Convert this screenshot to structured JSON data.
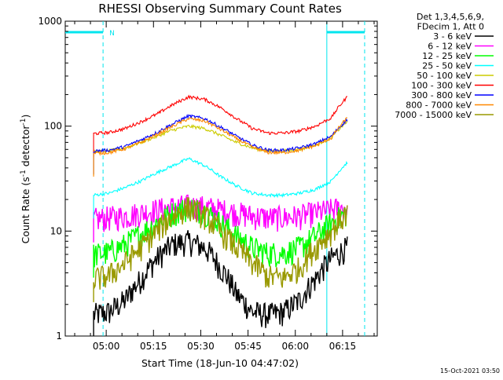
{
  "chart_data": {
    "type": "line",
    "title": "RHESSI Observing Summary Count Rates",
    "xlabel": "Start Time (18-Jun-10 04:47:02)",
    "ylabel": "Count Rate (s",
    "ylabel_sup": "-1",
    "ylabel_rest": " detector",
    "ylabel_close": ")",
    "yscale": "log",
    "ylim": [
      1,
      1000
    ],
    "xlim_minutes": [
      -13,
      86
    ],
    "x_ticks": [
      {
        "label": "05:00",
        "minutes": 0
      },
      {
        "label": "05:15",
        "minutes": 15
      },
      {
        "label": "05:30",
        "minutes": 30
      },
      {
        "label": "05:45",
        "minutes": 45
      },
      {
        "label": "06:00",
        "minutes": 60
      },
      {
        "label": "06:15",
        "minutes": 75
      }
    ],
    "y_ticks": [
      {
        "label": "1",
        "value": 1
      },
      {
        "label": "10",
        "value": 10
      },
      {
        "label": "100",
        "value": 100
      },
      {
        "label": "1000",
        "value": 1000
      }
    ],
    "legend_header": [
      "Det 1,3,4,5,6,9,",
      "FDecim 1, Att 0"
    ],
    "annotation_N": "N",
    "markers": {
      "night_start_minutes": -1,
      "saa_start_minutes": 70,
      "night_end_minutes": 82
    },
    "data_start_minutes": -4,
    "data_end_minutes": 76.5,
    "series": [
      {
        "name": "3 - 6 keV",
        "color": "#000000",
        "values": [
          1.6,
          1.7,
          2.2,
          3.5,
          5.5,
          7.5,
          8,
          7,
          4.5,
          2.5,
          1.7,
          1.6,
          1.7,
          2.2,
          3.5,
          5.5,
          7
        ]
      },
      {
        "name": "6 - 12 keV",
        "color": "#ff00ff",
        "values": [
          13,
          13.5,
          14,
          15,
          16,
          17,
          17.5,
          17,
          16,
          15,
          14,
          13.5,
          13.5,
          14,
          15,
          16,
          17
        ]
      },
      {
        "name": "12 - 25 keV",
        "color": "#00ff00",
        "values": [
          6,
          6.3,
          7.5,
          9.5,
          12,
          15,
          17,
          15.5,
          12,
          9,
          7,
          6.2,
          6.2,
          7,
          9,
          12,
          15
        ]
      },
      {
        "name": "25 - 50 keV",
        "color": "#00ffff",
        "values": [
          22,
          23,
          26,
          30,
          36,
          42,
          49,
          42,
          33,
          27,
          23,
          22,
          22,
          23,
          25,
          30,
          45
        ]
      },
      {
        "name": "50 - 100 keV",
        "color": "#cccc00",
        "values": [
          57,
          58,
          62,
          70,
          80,
          92,
          100,
          95,
          82,
          70,
          62,
          58,
          58,
          60,
          66,
          78,
          110
        ]
      },
      {
        "name": "100 - 300 keV",
        "color": "#ff0000",
        "values": [
          85,
          87,
          95,
          110,
          130,
          160,
          190,
          180,
          150,
          118,
          95,
          86,
          86,
          90,
          100,
          120,
          190
        ]
      },
      {
        "name": "300 - 800 keV",
        "color": "#0000ff",
        "values": [
          58,
          59,
          64,
          74,
          87,
          105,
          125,
          118,
          98,
          80,
          66,
          59,
          59,
          62,
          68,
          80,
          115
        ]
      },
      {
        "name": "800 - 7000 keV",
        "color": "#ff8800",
        "values": [
          55,
          56,
          61,
          70,
          83,
          100,
          118,
          112,
          93,
          76,
          63,
          56,
          56,
          59,
          65,
          77,
          120
        ]
      },
      {
        "name": "7000 - 15000 keV",
        "color": "#999900",
        "values": [
          3.5,
          3.8,
          5,
          7,
          10,
          14,
          17,
          14,
          10,
          7,
          5,
          3.7,
          3.6,
          4.5,
          7,
          10,
          15
        ]
      }
    ]
  },
  "timestamp": "15-Oct-2021 03:50"
}
